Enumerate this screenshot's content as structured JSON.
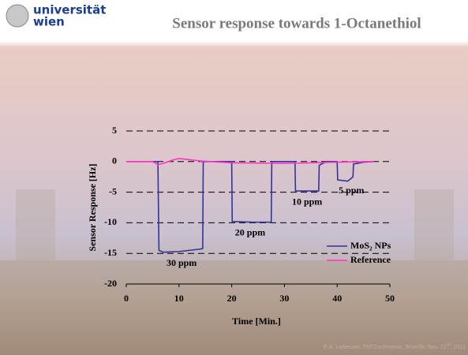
{
  "header": {
    "logo_line1": "universität",
    "logo_line2": "wien"
  },
  "chart_data": {
    "type": "line",
    "title": "Sensor response towards 1-Octanethiol",
    "x_label": "Time [Min.]",
    "y_label": "Sensor Response [Hz]",
    "xlim": [
      0,
      50
    ],
    "xticks": [
      0,
      10,
      20,
      30,
      40,
      50
    ],
    "ylim": [
      -20,
      5
    ],
    "yticks": [
      -20,
      -15,
      -10,
      -5,
      0,
      5
    ],
    "grid": true,
    "legend": "lower right",
    "series": [
      {
        "name": "MoS₂ NPs",
        "color": "#333399",
        "x": [
          0,
          6,
          6.2,
          7,
          10,
          14,
          14.5,
          14.6,
          16,
          20,
          20.1,
          24,
          27.5,
          27.6,
          32,
          32.1,
          36.5,
          36.6,
          38,
          40,
          40.1,
          42,
          43,
          43.1,
          45,
          47
        ],
        "values": [
          0,
          0,
          -14.5,
          -14.8,
          -14.7,
          -14.3,
          -14.2,
          0,
          0,
          0,
          -9.8,
          -9.9,
          -9.9,
          0,
          0,
          -4.8,
          -4.8,
          -0.6,
          0,
          0,
          -3.0,
          -3.2,
          -2.5,
          -0.4,
          -0.1,
          0
        ]
      },
      {
        "name": "Reference",
        "color": "#ff33cc",
        "x": [
          0,
          5,
          6,
          7,
          9,
          10,
          12,
          14,
          16,
          20,
          30,
          40,
          47
        ],
        "values": [
          0,
          0,
          -0.5,
          -0.3,
          0.3,
          0.5,
          0.3,
          0.1,
          0,
          -0.2,
          -0.3,
          -0.1,
          0
        ]
      }
    ],
    "annotations": [
      {
        "text": "30 ppm",
        "x": 10.5,
        "y": -16.7
      },
      {
        "text": "20 ppm",
        "x": 23.5,
        "y": -11.7
      },
      {
        "text": "10 ppm",
        "x": 34.3,
        "y": -6.7
      },
      {
        "text": "5 ppm",
        "x": 42.7,
        "y": -4.8
      }
    ]
  },
  "footer": {
    "before": "P. A. Lieberzeit, TNTConference, Tenerife, Nov. 22",
    "sup": "nd",
    "after": ", 2011"
  }
}
